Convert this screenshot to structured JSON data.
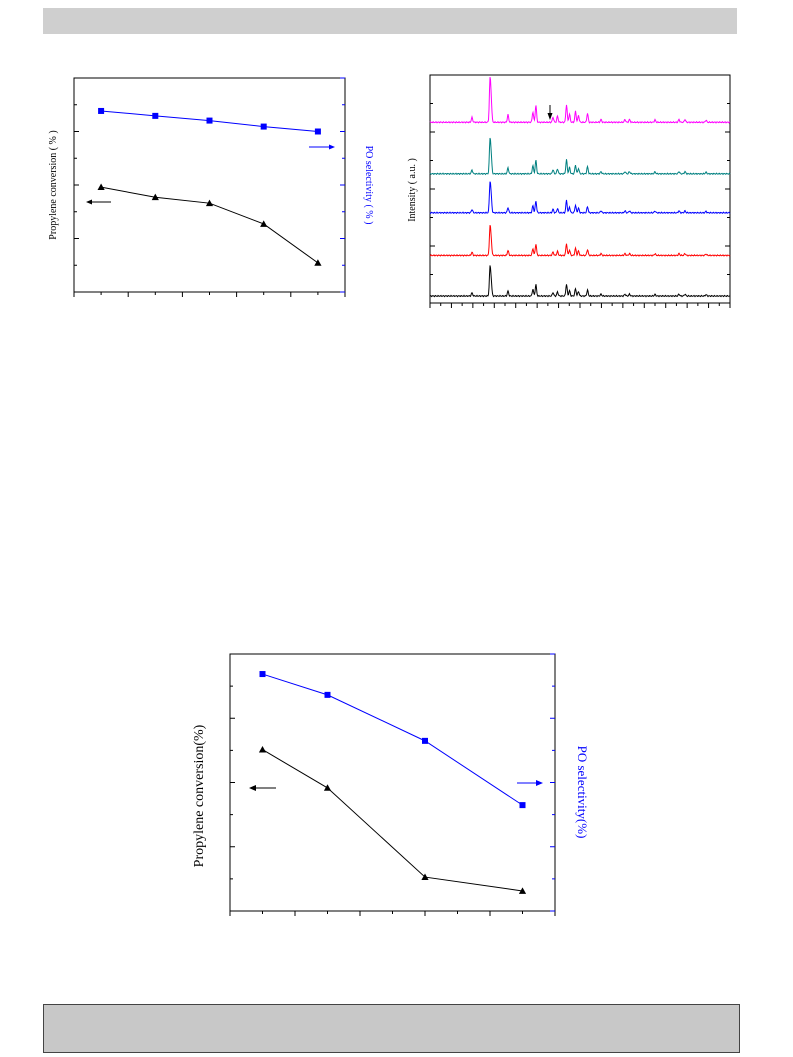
{
  "colors": {
    "black": "#000000",
    "blue": "#0000ff",
    "magenta": "#ff00ff",
    "teal": "#008080",
    "red": "#ff0000",
    "band_top": "#cfcfcf",
    "band_bottom": "#c8c8c8"
  },
  "chart_data": [
    {
      "id": "chart1",
      "type": "line",
      "ylabel": "Propylene conversion ( % )",
      "y2label": "PO selectivity ( % )",
      "xlim": [
        0,
        10
      ],
      "ylim": [
        0,
        100
      ],
      "y2lim": [
        0,
        100
      ],
      "series": [
        {
          "axis": "left",
          "marker": "triangle",
          "color": "#000000",
          "x": [
            1,
            3,
            5,
            7,
            9
          ],
          "y": [
            49,
            44.3,
            41.5,
            31.8,
            13.6
          ]
        },
        {
          "axis": "right",
          "marker": "square",
          "color": "#0000ff",
          "x": [
            1,
            3,
            5,
            7,
            9
          ],
          "y": [
            84.6,
            82.3,
            80.1,
            77.3,
            75
          ]
        }
      ],
      "annotations": [
        {
          "type": "arrow",
          "direction": "left",
          "meaning": "left-axis"
        },
        {
          "type": "arrow",
          "direction": "right",
          "meaning": "right-axis"
        }
      ]
    },
    {
      "id": "chart2",
      "type": "line",
      "ylabel": "Intensity ( a.u. )",
      "xlim": [
        0,
        100
      ],
      "ylim": [
        0,
        100
      ],
      "annotations": [
        {
          "type": "arrow",
          "direction": "down",
          "x": 40.5
        }
      ],
      "peaks": [
        {
          "x": 14,
          "h": 1.4
        },
        {
          "x": 20,
          "h": 12
        },
        {
          "x": 20.4,
          "h": 6
        },
        {
          "x": 26,
          "h": 2.2
        },
        {
          "x": 34.3,
          "h": 3
        },
        {
          "x": 35.3,
          "h": 5
        },
        {
          "x": 41,
          "h": 1.5
        },
        {
          "x": 42.5,
          "h": 1.8
        },
        {
          "x": 45.5,
          "h": 5.2
        },
        {
          "x": 46.5,
          "h": 2.4
        },
        {
          "x": 48.5,
          "h": 3.2
        },
        {
          "x": 49.5,
          "h": 2
        },
        {
          "x": 52.5,
          "h": 2.6
        },
        {
          "x": 57,
          "h": 0.8
        },
        {
          "x": 65,
          "h": 0.8
        },
        {
          "x": 66.5,
          "h": 0.8
        },
        {
          "x": 75,
          "h": 0.7
        },
        {
          "x": 83,
          "h": 0.8
        },
        {
          "x": 85,
          "h": 0.8
        },
        {
          "x": 92,
          "h": 0.6
        }
      ],
      "series": [
        {
          "color": "#ff00ff",
          "offset": 76.2,
          "scale": 1.5
        },
        {
          "color": "#008080",
          "offset": 53.6,
          "scale": 1.2
        },
        {
          "color": "#0000ff",
          "offset": 36.5,
          "scale": 1.05
        },
        {
          "color": "#ff0000",
          "offset": 17.8,
          "scale": 1.0
        },
        {
          "color": "#000000",
          "offset": 0,
          "scale": 1.0
        }
      ]
    },
    {
      "id": "chart3",
      "type": "line",
      "ylabel": "Propylene conversion(%)",
      "y2label": "PO selectivity(%)",
      "xlim": [
        0,
        10
      ],
      "ylim": [
        0,
        100
      ],
      "y2lim": [
        0,
        100
      ],
      "series": [
        {
          "axis": "left",
          "marker": "triangle",
          "color": "#000000",
          "x": [
            1,
            3,
            6,
            9
          ],
          "y": [
            62.8,
            47.9,
            13.2,
            7.8
          ]
        },
        {
          "axis": "right",
          "marker": "square",
          "color": "#0000ff",
          "x": [
            1,
            3,
            6,
            9
          ],
          "y": [
            92.2,
            84.1,
            66.2,
            41.2
          ]
        }
      ],
      "annotations": [
        {
          "type": "arrow",
          "direction": "left",
          "meaning": "left-axis"
        },
        {
          "type": "arrow",
          "direction": "right",
          "meaning": "right-axis"
        }
      ]
    }
  ]
}
